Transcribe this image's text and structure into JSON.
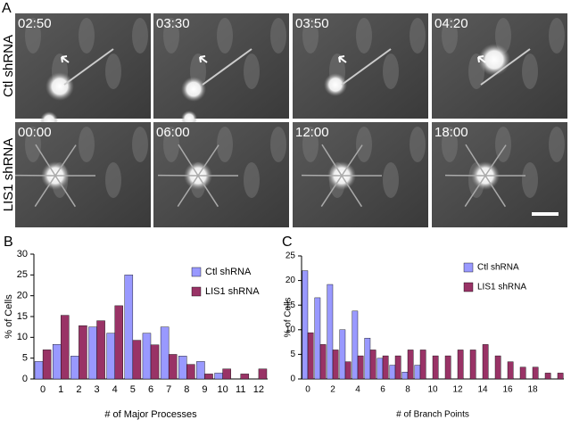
{
  "panel_a": {
    "label": "A",
    "rows": [
      {
        "label": "Ctl shRNA",
        "times": [
          "02:50",
          "03:30",
          "03:50",
          "04:20"
        ]
      },
      {
        "label": "LIS1 shRNA",
        "times": [
          "00:00",
          "06:00",
          "12:00",
          "18:00"
        ]
      }
    ]
  },
  "panel_labels": [
    "B",
    "C"
  ],
  "chart_data": [
    {
      "type": "bar",
      "xlabel": "# of Major Processes",
      "ylabel": "% of Cells",
      "categories": [
        "0",
        "1",
        "2",
        "3",
        "4",
        "5",
        "6",
        "7",
        "8",
        "9",
        "10",
        "11",
        "12"
      ],
      "series": [
        {
          "name": "Ctl shRNA",
          "color": "#9999ff",
          "values": [
            4.2,
            8.3,
            5.5,
            12.5,
            11,
            25,
            11,
            12.5,
            5.5,
            4.2,
            1.4,
            0,
            0
          ]
        },
        {
          "name": "LIS1 shRNA",
          "color": "#993366",
          "values": [
            7,
            15.3,
            12.8,
            14,
            17.6,
            9.3,
            8.2,
            5.9,
            3.5,
            1.2,
            2.4,
            1.2,
            2.4
          ]
        }
      ],
      "ylim": [
        0,
        30
      ],
      "yticks": [
        0,
        5,
        10,
        15,
        20,
        25,
        30
      ],
      "legend": "upper right"
    },
    {
      "type": "bar",
      "xlabel": "# of Branch Points",
      "ylabel": "% of Cells",
      "categories": [
        "0",
        null,
        "2",
        null,
        "4",
        null,
        "6",
        null,
        "8",
        null,
        "10",
        null,
        "12",
        null,
        "14",
        null,
        "16",
        null,
        "18",
        null,
        null
      ],
      "series": [
        {
          "name": "Ctl shRNA",
          "color": "#9999ff",
          "values": [
            22,
            16.5,
            19.2,
            10,
            13.8,
            8.3,
            4.2,
            2.8,
            1.4,
            2.8,
            0,
            0,
            0,
            0,
            0,
            0,
            0,
            0,
            0,
            0,
            0
          ]
        },
        {
          "name": "LIS1 shRNA",
          "color": "#993366",
          "values": [
            9.4,
            7,
            5.9,
            3.5,
            4.7,
            5.9,
            4.7,
            4.7,
            5.9,
            5.9,
            4.7,
            4.7,
            5.9,
            5.9,
            7,
            4.7,
            3.5,
            2.4,
            2.4,
            1.2,
            1.2
          ]
        }
      ],
      "ylim": [
        0,
        25
      ],
      "yticks": [
        0,
        5,
        10,
        15,
        20,
        25
      ],
      "legend": "upper right"
    }
  ]
}
